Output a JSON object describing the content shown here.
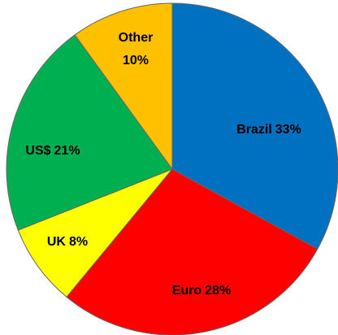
{
  "chart_data": {
    "type": "pie",
    "categories": [
      "Brazil",
      "Euro",
      "UK",
      "US$",
      "Other"
    ],
    "values": [
      33,
      28,
      8,
      21,
      10
    ],
    "value_labels": [
      "33%",
      "28%",
      "8%",
      "21%",
      "10%"
    ],
    "colors": [
      "#0070c0",
      "#ff0000",
      "#ffff00",
      "#00b050",
      "#ffc000"
    ]
  }
}
